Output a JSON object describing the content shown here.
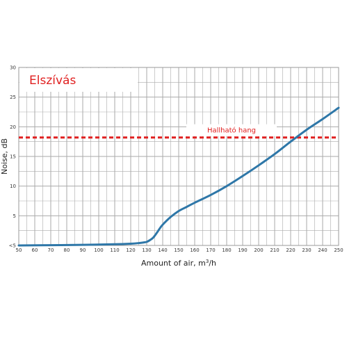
{
  "colors": {
    "curve": "#2E77A8",
    "threshold": "#E02020",
    "title": "#E02020",
    "grid": "#AAAAAA"
  },
  "chart_data": {
    "type": "line",
    "title": "Elszívás",
    "xlabel_main": "Amount of air, m",
    "xlabel_sup": "3",
    "xlabel_tail": "/h",
    "ylabel": "Noise, dB",
    "xlim": [
      50,
      250
    ],
    "ylim": [
      0,
      30
    ],
    "x_ticks": [
      "50",
      "60",
      "70",
      "80",
      "90",
      "100",
      "110",
      "120",
      "130",
      "140",
      "150",
      "160",
      "170",
      "180",
      "190",
      "200",
      "210",
      "220",
      "230",
      "240",
      "250"
    ],
    "y_ticks": [
      {
        "value": 0,
        "label": "<5"
      },
      {
        "value": 5,
        "label": "5"
      },
      {
        "value": 10,
        "label": "10"
      },
      {
        "value": 15,
        "label": "15"
      },
      {
        "value": 20,
        "label": "20"
      },
      {
        "value": 25,
        "label": "25"
      },
      {
        "value": 30,
        "label": "30"
      }
    ],
    "grid": true,
    "series": [
      {
        "x": [
          50,
          70,
          90,
          110,
          120,
          125,
          128,
          130,
          132,
          134,
          136,
          138,
          140,
          145,
          150,
          155,
          160,
          170,
          180,
          190,
          200,
          210,
          220,
          230,
          240,
          250
        ],
        "y": [
          0.0,
          0.05,
          0.1,
          0.2,
          0.3,
          0.4,
          0.5,
          0.6,
          0.9,
          1.3,
          2.0,
          2.8,
          3.5,
          4.8,
          5.8,
          6.5,
          7.2,
          8.5,
          10.0,
          11.7,
          13.5,
          15.4,
          17.5,
          19.5,
          21.3,
          23.2
        ]
      }
    ],
    "threshold": {
      "y": 18.2,
      "label": "Hallható hang"
    }
  }
}
